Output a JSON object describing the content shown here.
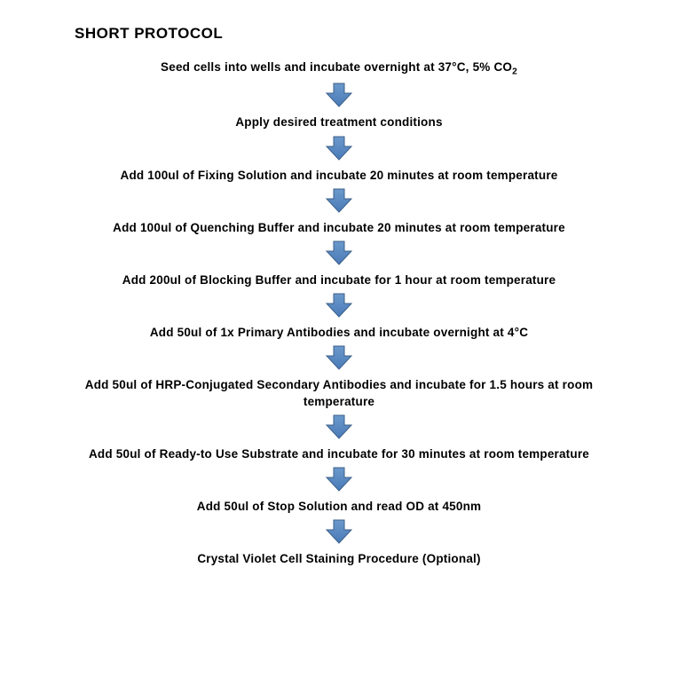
{
  "title": "SHORT PROTOCOL",
  "arrow": {
    "fill": "#4a7ab7",
    "stroke": "#3b5f8a",
    "width": 34,
    "height": 30
  },
  "title_fontsize": 17,
  "step_fontsize": 13.5,
  "background_color": "#ffffff",
  "text_color": "#000000",
  "steps": [
    "Seed cells into wells and incubate overnight at 37°C, 5% CO₂",
    "Apply desired treatment conditions",
    "Add 100ul of Fixing Solution and incubate 20 minutes at room temperature",
    "Add 100ul of Quenching Buffer and incubate 20 minutes at room temperature",
    "Add 200ul of Blocking Buffer and incubate for 1 hour at room temperature",
    "Add 50ul of 1x Primary Antibodies and incubate overnight at 4°C",
    "Add 50ul of HRP-Conjugated Secondary Antibodies and incubate for 1.5 hours at room temperature",
    "Add 50ul of Ready-to Use Substrate and incubate for 30 minutes at room temperature",
    "Add 50ul of Stop Solution and read OD at 450nm",
    "Crystal Violet Cell Staining Procedure (Optional)"
  ]
}
